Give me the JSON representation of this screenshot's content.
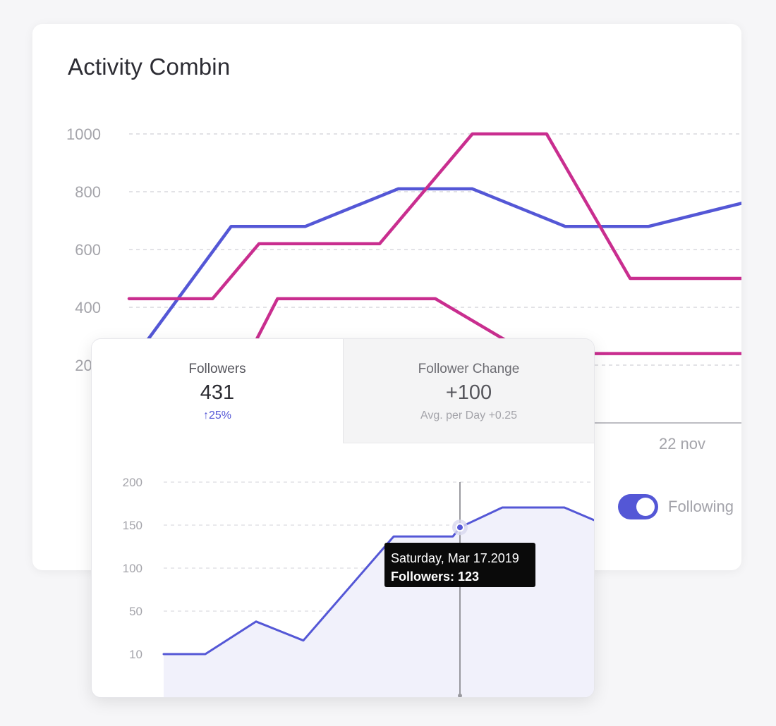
{
  "activity": {
    "title": "Activity Combin",
    "toggle_label": "Following",
    "toggle_on": true
  },
  "summary": {
    "tabs": [
      {
        "label": "Followers",
        "value": "431",
        "sub": "↑25%",
        "active": true
      },
      {
        "label": "Follower Change",
        "value": "+100",
        "sub": "Avg. per Day +0.25",
        "active": false
      }
    ],
    "tooltip": {
      "date": "Saturday, Mar 17.2019",
      "value": "Followers: 123"
    }
  },
  "colors": {
    "accent": "#5457d6",
    "magenta": "#c92e8f",
    "area_fill": "#f1f1fb",
    "grid": "#d9d9de",
    "tick": "#a4a4aa"
  },
  "chart_data": [
    {
      "type": "line",
      "title": "Activity Combin",
      "ylim": [
        0,
        1000
      ],
      "y_ticks": [
        "1000",
        "800",
        "600",
        "400",
        "200"
      ],
      "x_ticks": [
        "22 nov"
      ],
      "grid": true,
      "series": [
        {
          "color": "#5457d6",
          "x": [
            0,
            1.1,
            1.9,
            2.9,
            3.7,
            4.7,
            5.6,
            6.6
          ],
          "values": [
            200,
            680,
            680,
            810,
            810,
            680,
            680,
            760
          ]
        },
        {
          "color": "#c92e8f",
          "x": [
            0,
            0.9,
            1.4,
            2.7,
            3.7,
            4.5,
            5.4,
            6.6
          ],
          "values": [
            430,
            430,
            620,
            620,
            1000,
            1000,
            500,
            500
          ]
        },
        {
          "color": "#c92e8f",
          "x": [
            0,
            1.2,
            1.6,
            3.0,
            3.3,
            4.3,
            5.3,
            6.6
          ],
          "values": [
            180,
            180,
            430,
            430,
            430,
            240,
            240,
            240
          ]
        }
      ]
    },
    {
      "type": "area",
      "ylim": [
        0,
        200
      ],
      "y_ticks": [
        "200",
        "150",
        "100",
        "50",
        "10"
      ],
      "grid": true,
      "series": [
        {
          "color": "#5457d6",
          "x": [
            0,
            1,
            2,
            3,
            4,
            5,
            6,
            7,
            8,
            9,
            10
          ],
          "values": [
            10,
            10,
            46,
            25,
            140,
            140,
            150,
            172,
            172,
            158,
            158
          ]
        }
      ],
      "highlight_index": 6
    }
  ]
}
